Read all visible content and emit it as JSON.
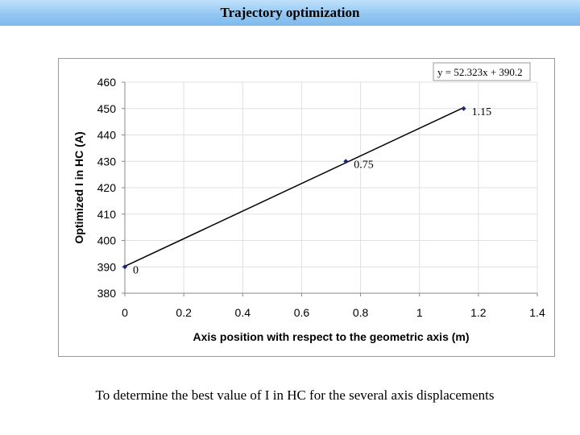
{
  "slide": {
    "title": "Trajectory optimization",
    "caption": "To determine the best value of I in HC for the several axis displacements"
  },
  "chart_data": {
    "type": "scatter",
    "xlabel": "Axis position with respect to the geometric axis (m)",
    "ylabel": "Optimized I in HC (A)",
    "xlim": [
      0,
      1.4
    ],
    "ylim": [
      380,
      460
    ],
    "xticks": [
      "0",
      "0.2",
      "0.4",
      "0.6",
      "0.8",
      "1",
      "1.2",
      "1.4"
    ],
    "yticks": [
      "380",
      "390",
      "400",
      "410",
      "420",
      "430",
      "440",
      "450",
      "460"
    ],
    "grid": true,
    "series": [
      {
        "points": [
          {
            "x": 0,
            "y": 390,
            "label": "0"
          },
          {
            "x": 0.75,
            "y": 430,
            "label": "0.75"
          },
          {
            "x": 1.15,
            "y": 450,
            "label": "1.15"
          }
        ],
        "trendline": {
          "slope": 52.323,
          "intercept": 390.2,
          "x_range": [
            0,
            1.15
          ],
          "equation": "y = 52.323x + 390.2"
        }
      }
    ],
    "colors": {
      "marker": "#1a237e",
      "line": "#000000",
      "grid": "#e0e0e0"
    }
  }
}
